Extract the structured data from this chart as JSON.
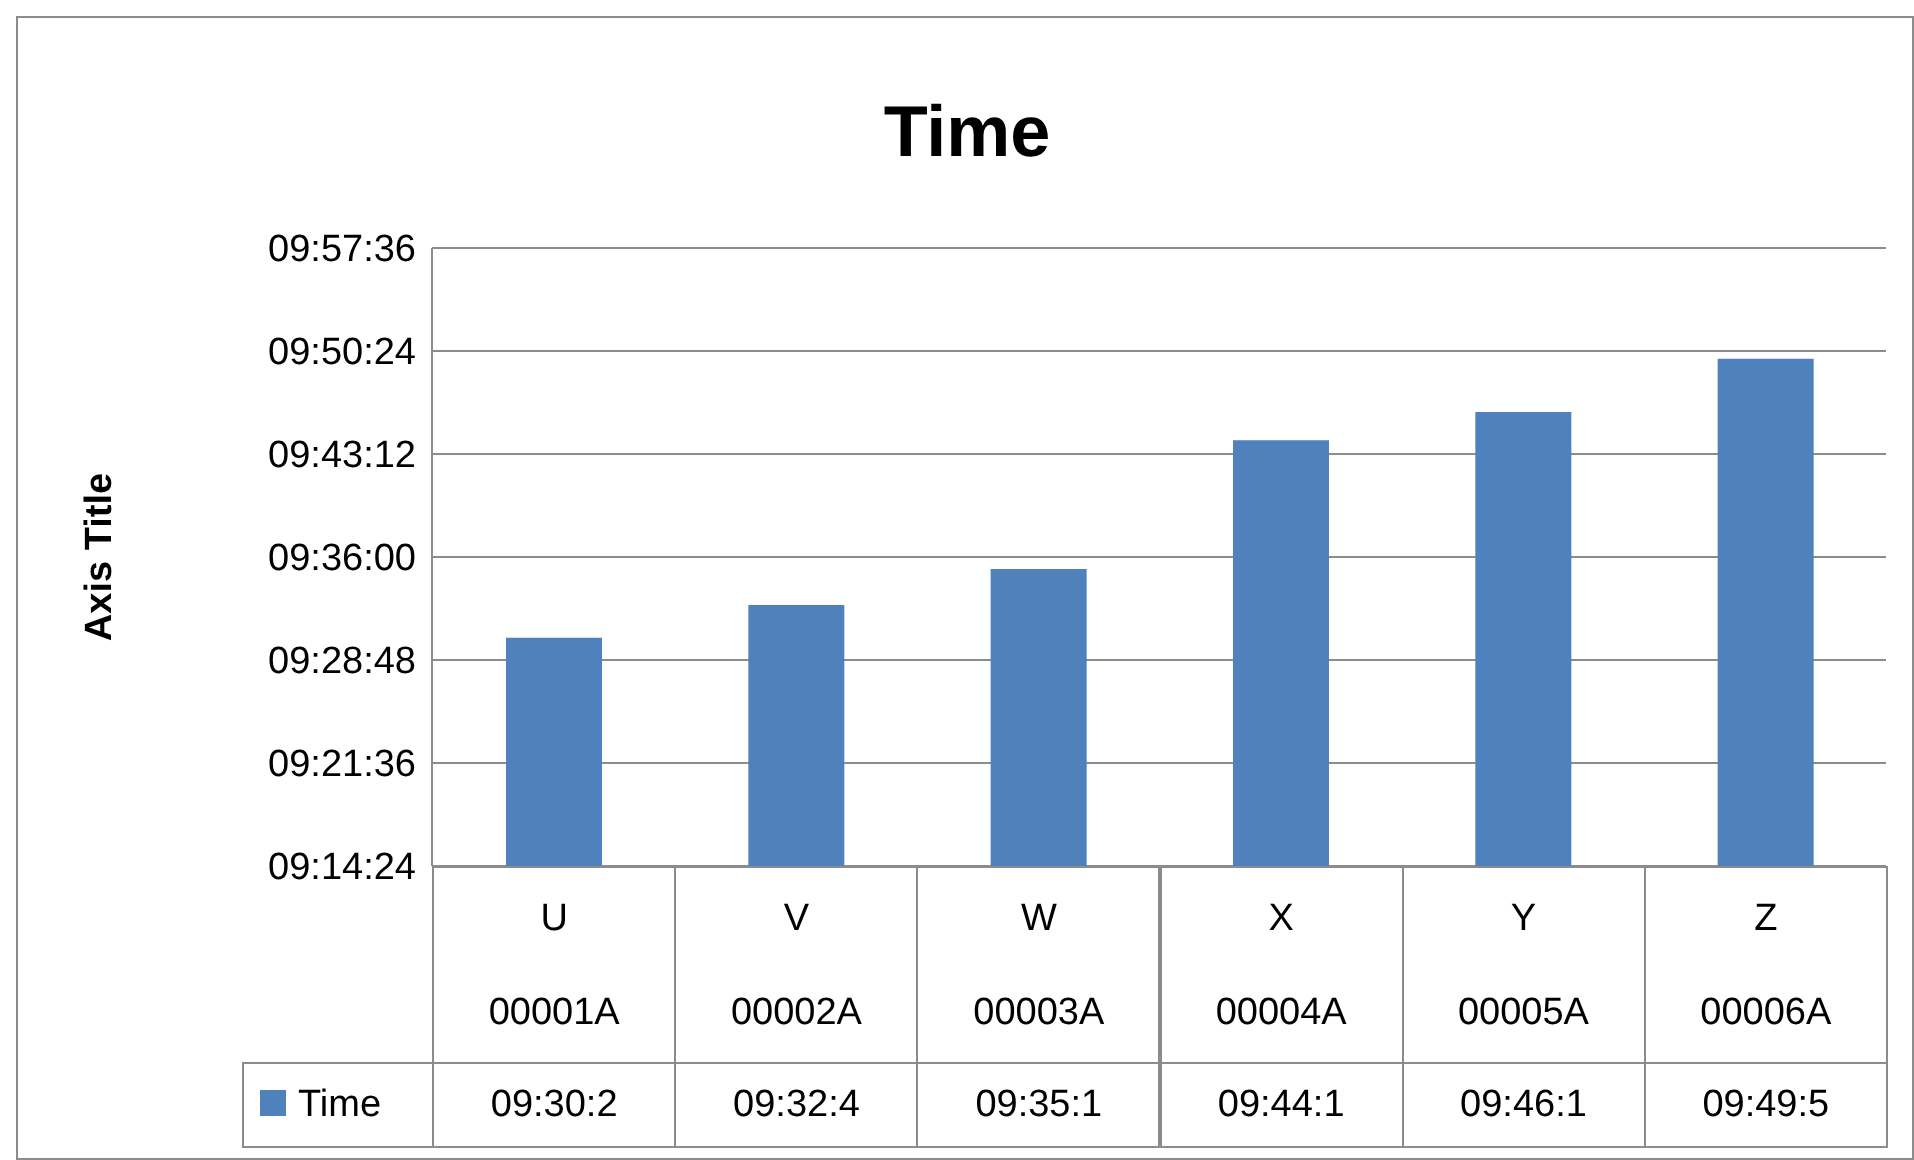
{
  "chart_data": {
    "type": "bar",
    "title": "Time",
    "ylabel": "Axis Title",
    "categories": [
      "U\n00001A",
      "V\n00002A",
      "W\n00003A",
      "X\n00004A",
      "Y\n00005A",
      "Z\n00006A"
    ],
    "series": [
      {
        "name": "Time",
        "color": "#4f81bd",
        "values": [
          9.506,
          9.544,
          9.586,
          9.736,
          9.769,
          9.831
        ],
        "value_labels": [
          "09:30:2",
          "09:32:4",
          "09:35:1",
          "09:44:1",
          "09:46:1",
          "09:49:5"
        ]
      }
    ],
    "ylim": [
      9.24,
      9.96
    ],
    "yticks": [
      {
        "value": 9.24,
        "label": "09:14:24"
      },
      {
        "value": 9.36,
        "label": "09:21:36"
      },
      {
        "value": 9.48,
        "label": "09:28:48"
      },
      {
        "value": 9.6,
        "label": "09:36:00"
      },
      {
        "value": 9.72,
        "label": "09:43:12"
      },
      {
        "value": 9.84,
        "label": "09:50:24"
      },
      {
        "value": 9.96,
        "label": "09:57:36"
      }
    ],
    "grid": "y",
    "legend": "bottom"
  }
}
